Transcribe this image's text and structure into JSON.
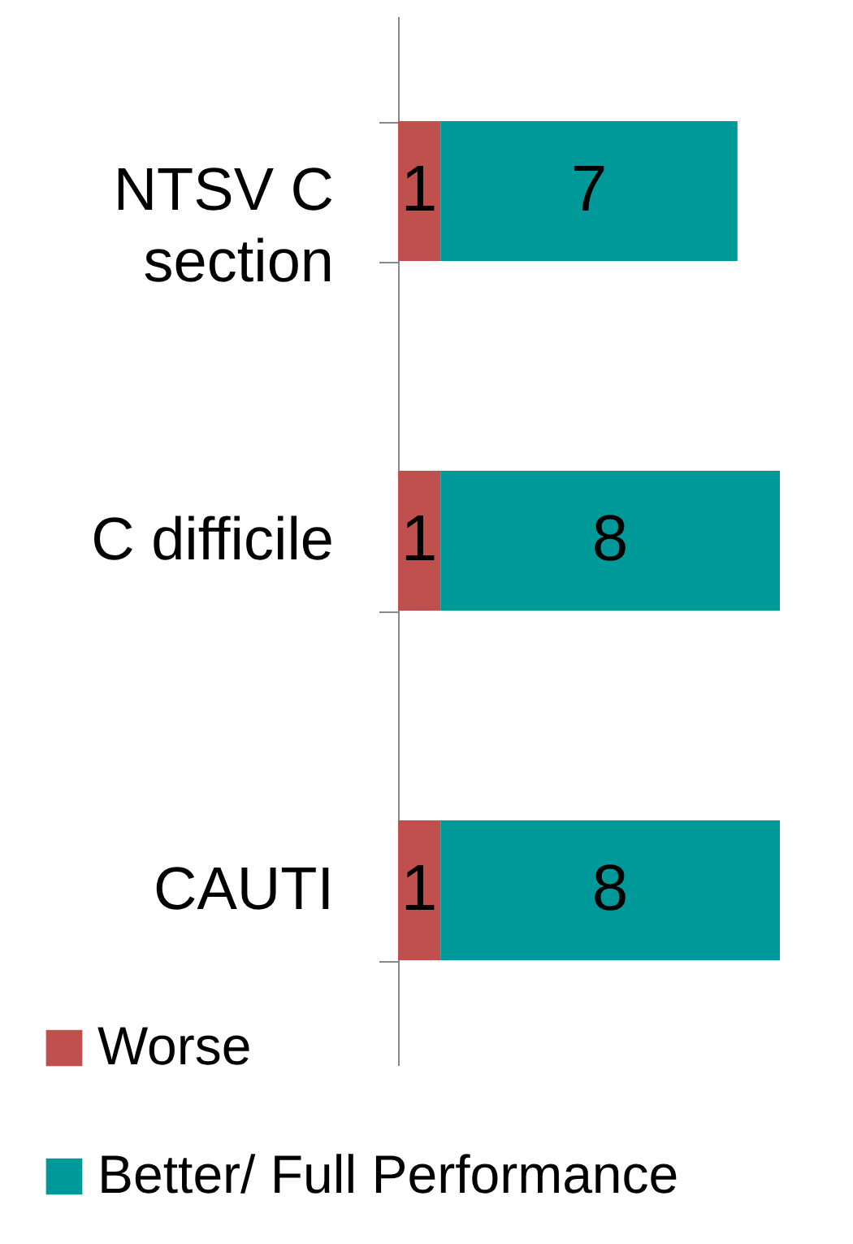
{
  "chart_data": {
    "type": "bar",
    "orientation": "horizontal",
    "stacked": true,
    "data_labels": true,
    "legend": "bottom left",
    "categories": [
      "NTSV C section",
      "C difficile",
      "CAUTI"
    ],
    "series": [
      {
        "name": "Worse",
        "color": "#c0504d",
        "values": [
          1,
          1,
          1
        ]
      },
      {
        "name": "Better/ Full Performance",
        "color": "#009999",
        "values": [
          7,
          8,
          8
        ]
      }
    ]
  }
}
